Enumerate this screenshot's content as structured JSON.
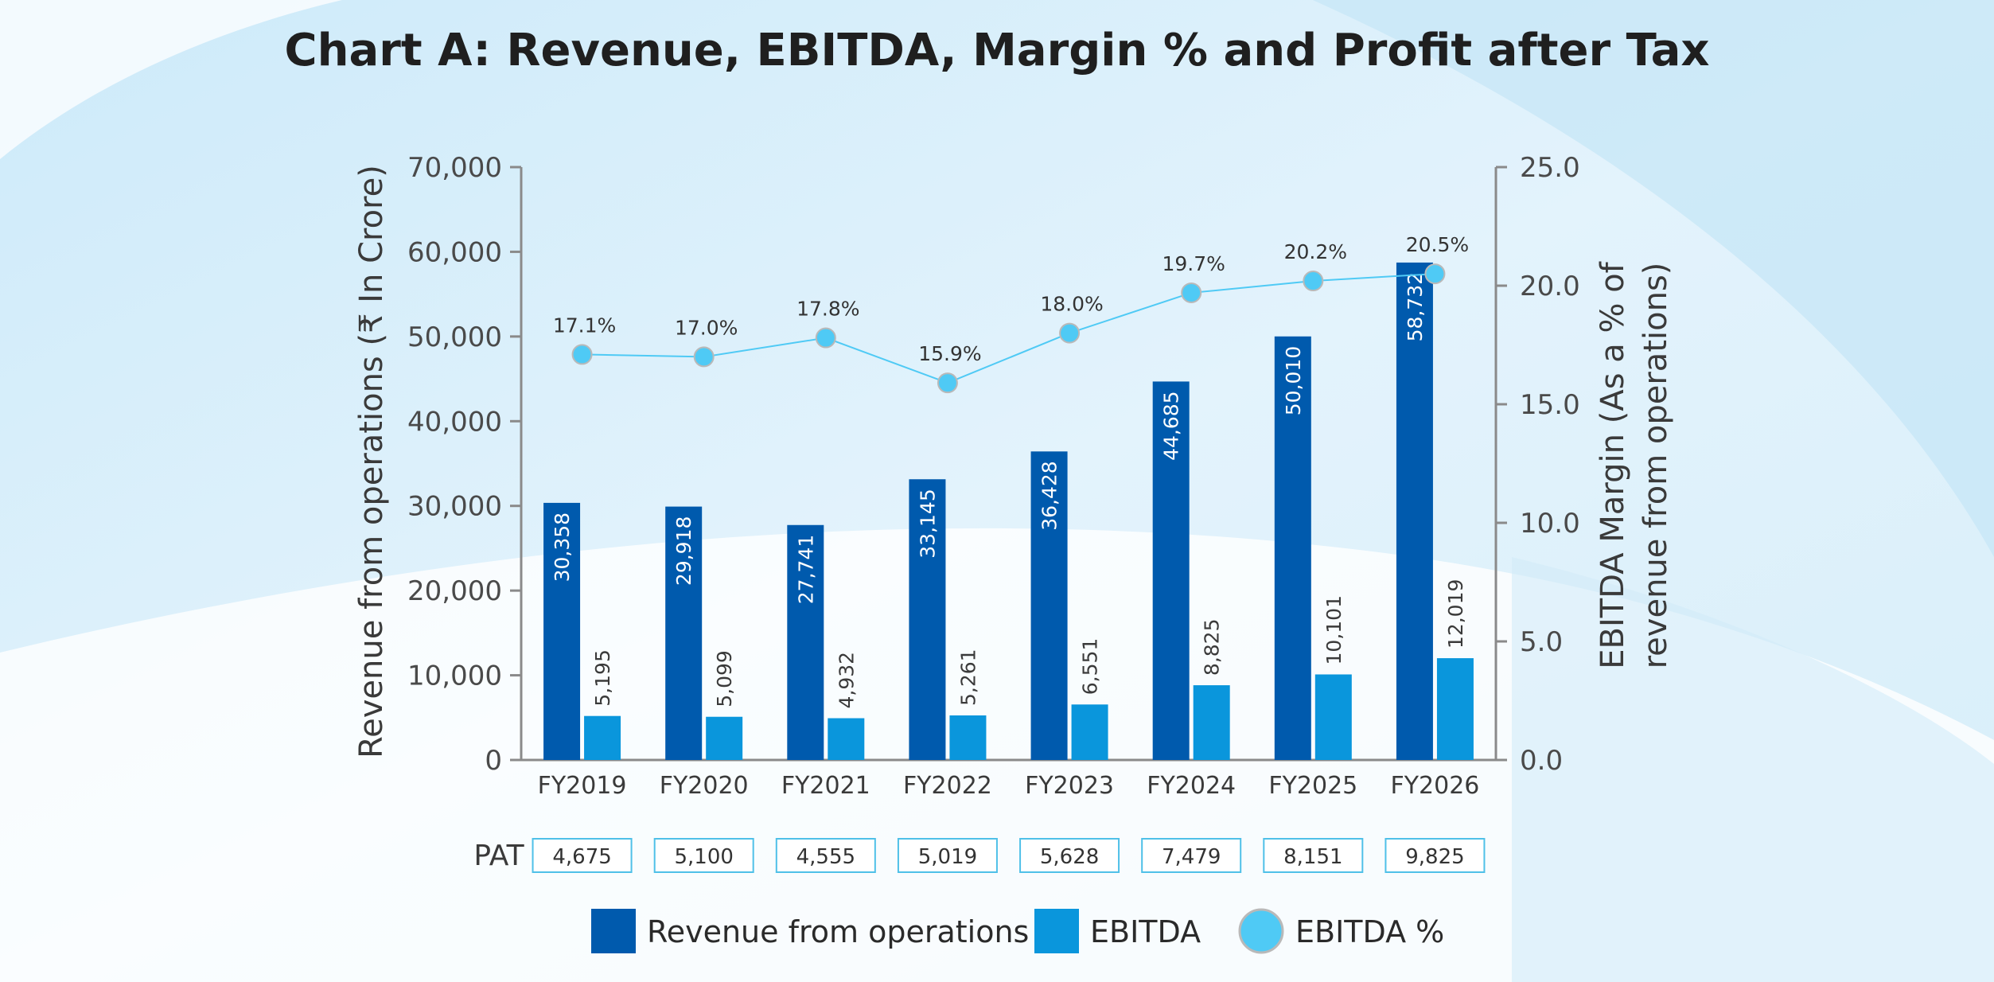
{
  "colors": {
    "revenue": "#005aad",
    "ebitda": "#0a96dc",
    "ebitda_pct": "#4fcaf5",
    "axis": "#8a8a8a",
    "pat_border": "#4fc0e8"
  },
  "pat": {
    "label": "PAT",
    "values": [
      "4,675",
      "5,100",
      "4,555",
      "5,019",
      "5,628",
      "7,479",
      "8,151",
      "9,825"
    ]
  },
  "chart_data": {
    "type": "bar",
    "title": "Chart A: Revenue, EBITDA, Margin % and Profit after Tax",
    "categories": [
      "FY2019",
      "FY2020",
      "FY2021",
      "FY2022",
      "FY2023",
      "FY2024",
      "FY2025",
      "FY2026"
    ],
    "series": [
      {
        "name": "Revenue from operations",
        "axis": "left",
        "kind": "bar",
        "values": [
          30358,
          29918,
          27741,
          33145,
          36428,
          44685,
          50010,
          58732
        ],
        "labels": [
          "30,358",
          "29,918",
          "27,741",
          "33,145",
          "36,428",
          "44,685",
          "50,010",
          "58,732"
        ]
      },
      {
        "name": "EBITDA",
        "axis": "left",
        "kind": "bar",
        "values": [
          5195,
          5099,
          4932,
          5261,
          6551,
          8825,
          10101,
          12019
        ],
        "labels": [
          "5,195",
          "5,099",
          "4,932",
          "5,261",
          "6,551",
          "8,825",
          "10,101",
          "12,019"
        ]
      },
      {
        "name": "EBITDA %",
        "axis": "right",
        "kind": "line",
        "values": [
          17.1,
          17.0,
          17.8,
          15.9,
          18.0,
          19.7,
          20.2,
          20.5
        ],
        "labels": [
          "17.1%",
          "17.0%",
          "17.8%",
          "15.9%",
          "18.0%",
          "19.7%",
          "20.2%",
          "20.5%"
        ]
      }
    ],
    "ylabel": "Revenue from operations  (₹ In Crore)",
    "y2label_lines": [
      "EBITDA Margin (As a % of",
      "revenue from operations)"
    ],
    "ylim": [
      0,
      70000
    ],
    "y2lim": [
      0,
      25
    ],
    "yticks": [
      "0",
      "10,000",
      "20,000",
      "30,000",
      "40,000",
      "50,000",
      "60,000",
      "70,000"
    ],
    "y2ticks": [
      "0.0",
      "5.0",
      "10.0",
      "15.0",
      "20.0",
      "25.0"
    ],
    "grid": false,
    "legend": "bottom"
  }
}
